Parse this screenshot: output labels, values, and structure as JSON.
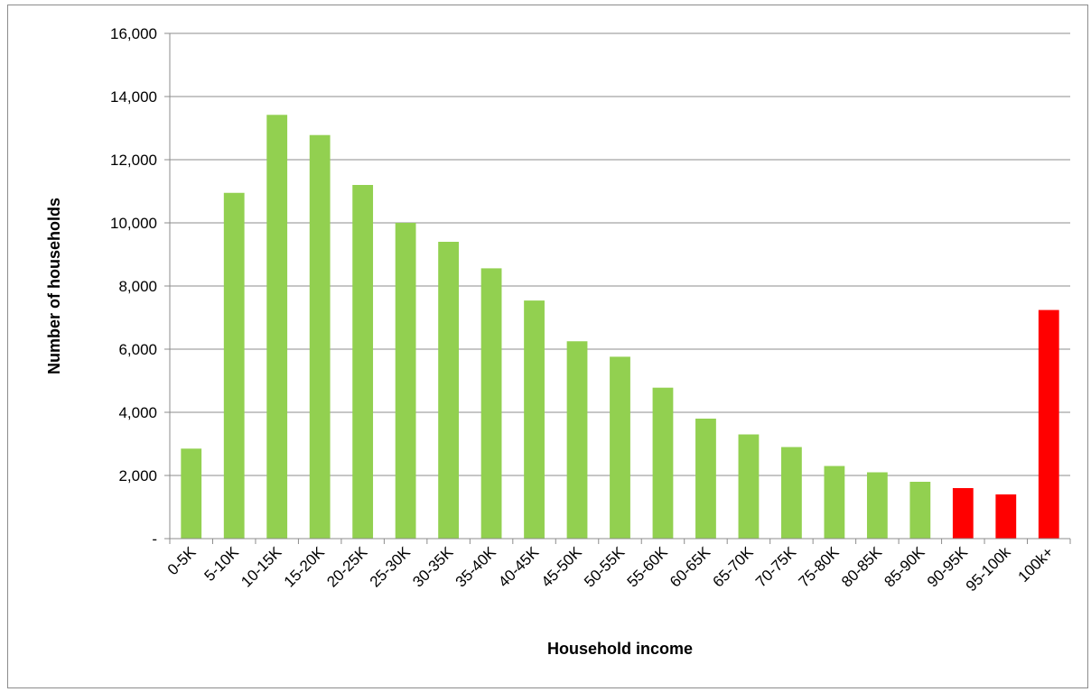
{
  "chart_data": {
    "type": "bar",
    "title": "",
    "xlabel": "Household income",
    "ylabel": "Number of households",
    "ylim": [
      0,
      16000
    ],
    "yticks": [
      0,
      2000,
      4000,
      6000,
      8000,
      10000,
      12000,
      14000,
      16000
    ],
    "ytick_labels": [
      "-",
      "2,000",
      "4,000",
      "6,000",
      "8,000",
      "10,000",
      "12,000",
      "14,000",
      "16,000"
    ],
    "grid": true,
    "legend": "none",
    "categories": [
      "0-5K",
      "5-10K",
      "10-15K",
      "15-20K",
      "20-25K",
      "25-30K",
      "30-35K",
      "35-40K",
      "40-45K",
      "45-50K",
      "50-55K",
      "55-60K",
      "60-65K",
      "65-70K",
      "70-75K",
      "75-80K",
      "80-85K",
      "85-90K",
      "90-95K",
      "95-100k",
      "100k+"
    ],
    "values": [
      2850,
      10950,
      13420,
      12780,
      11200,
      10000,
      9400,
      8560,
      7540,
      6250,
      5760,
      4780,
      3800,
      3300,
      2900,
      2300,
      2100,
      1800,
      1600,
      1400,
      7240
    ],
    "bar_colors": [
      "#92d050",
      "#92d050",
      "#92d050",
      "#92d050",
      "#92d050",
      "#92d050",
      "#92d050",
      "#92d050",
      "#92d050",
      "#92d050",
      "#92d050",
      "#92d050",
      "#92d050",
      "#92d050",
      "#92d050",
      "#92d050",
      "#92d050",
      "#92d050",
      "#ff0000",
      "#ff0000",
      "#ff0000"
    ],
    "gridline_color": "#8c8c8c",
    "axis_color": "#8c8c8c"
  }
}
